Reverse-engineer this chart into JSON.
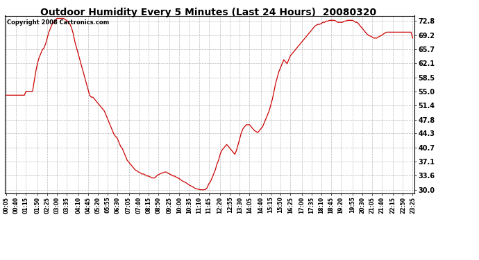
{
  "title": "Outdoor Humidity Every 5 Minutes (Last 24 Hours)  20080320",
  "copyright_text": "Copyright 2008 Cartronics.com",
  "line_color": "#cc0000",
  "background_color": "#ffffff",
  "grid_color": "#bbbbbb",
  "yticks": [
    30.0,
    33.6,
    37.1,
    40.7,
    44.3,
    47.8,
    51.4,
    55.0,
    58.5,
    62.1,
    65.7,
    69.2,
    72.8
  ],
  "ymin": 29.0,
  "ymax": 74.2,
  "humidity_data": [
    54.0,
    54.0,
    54.0,
    54.0,
    54.0,
    54.0,
    54.0,
    54.0,
    54.0,
    54.0,
    54.0,
    54.0,
    55.0,
    55.0,
    55.0,
    55.0,
    55.0,
    57.5,
    60.0,
    62.0,
    63.5,
    64.5,
    65.5,
    66.0,
    67.0,
    68.5,
    70.0,
    71.0,
    72.0,
    72.5,
    73.0,
    73.5,
    73.5,
    73.5,
    73.5,
    73.5,
    73.2,
    73.0,
    72.5,
    72.0,
    71.0,
    69.5,
    67.5,
    66.0,
    64.5,
    63.0,
    61.5,
    60.0,
    58.5,
    57.0,
    55.5,
    54.0,
    53.5,
    53.5,
    53.0,
    52.5,
    52.0,
    51.5,
    51.0,
    50.5,
    50.0,
    49.0,
    48.0,
    47.0,
    46.0,
    45.0,
    44.0,
    43.5,
    43.0,
    42.0,
    41.0,
    40.5,
    39.5,
    38.5,
    37.5,
    37.0,
    36.5,
    36.0,
    35.5,
    35.0,
    34.8,
    34.5,
    34.3,
    34.0,
    34.0,
    33.8,
    33.5,
    33.5,
    33.3,
    33.0,
    33.0,
    33.0,
    33.5,
    33.8,
    34.0,
    34.2,
    34.3,
    34.5,
    34.5,
    34.2,
    34.0,
    33.8,
    33.5,
    33.5,
    33.2,
    33.0,
    32.8,
    32.5,
    32.2,
    32.0,
    31.8,
    31.5,
    31.2,
    31.0,
    30.8,
    30.5,
    30.3,
    30.2,
    30.1,
    30.0,
    30.0,
    30.0,
    30.1,
    30.5,
    31.5,
    32.0,
    33.0,
    34.0,
    35.0,
    36.5,
    37.5,
    39.0,
    40.0,
    40.5,
    41.0,
    41.5,
    41.0,
    40.5,
    40.0,
    39.5,
    39.0,
    40.0,
    41.5,
    43.0,
    44.5,
    45.5,
    46.0,
    46.5,
    46.5,
    46.5,
    46.0,
    45.5,
    45.0,
    44.8,
    44.5,
    45.0,
    45.5,
    46.0,
    47.0,
    48.0,
    49.0,
    50.0,
    51.5,
    53.0,
    55.0,
    57.0,
    58.5,
    60.0,
    61.0,
    62.0,
    63.0,
    62.5,
    62.0,
    63.0,
    64.0,
    64.5,
    65.0,
    65.5,
    66.0,
    66.5,
    67.0,
    67.5,
    68.0,
    68.5,
    69.0,
    69.5,
    70.0,
    70.5,
    71.0,
    71.5,
    71.8,
    72.0,
    72.0,
    72.2,
    72.5,
    72.5,
    72.8,
    72.8,
    73.0,
    73.0,
    73.0,
    73.0,
    72.8,
    72.5,
    72.5,
    72.5,
    72.5,
    72.8,
    72.8,
    73.0,
    73.0,
    73.0,
    73.0,
    72.8,
    72.5,
    72.5,
    72.0,
    71.5,
    71.0,
    70.5,
    70.0,
    69.5,
    69.2,
    69.0,
    68.8,
    68.5,
    68.5,
    68.5,
    68.8,
    69.0,
    69.2,
    69.5,
    69.8,
    70.0,
    70.0,
    70.0,
    70.0,
    70.0,
    70.0,
    70.0,
    70.0,
    70.0,
    70.0,
    70.0,
    70.0,
    70.0,
    70.0,
    70.0,
    70.0,
    68.5
  ],
  "x_tick_labels": [
    "00:05",
    "00:40",
    "01:15",
    "01:50",
    "02:25",
    "03:00",
    "03:35",
    "04:10",
    "04:45",
    "05:20",
    "05:55",
    "06:30",
    "07:05",
    "07:40",
    "08:15",
    "08:50",
    "09:25",
    "10:00",
    "10:35",
    "11:10",
    "11:45",
    "12:20",
    "12:55",
    "13:30",
    "14:05",
    "14:40",
    "15:15",
    "15:50",
    "16:25",
    "17:00",
    "17:35",
    "18:10",
    "18:45",
    "19:20",
    "19:55",
    "20:30",
    "21:05",
    "21:40",
    "22:15",
    "22:50",
    "23:25"
  ],
  "title_fontsize": 10,
  "copyright_fontsize": 6,
  "xtick_fontsize": 5.5,
  "ytick_fontsize": 7
}
